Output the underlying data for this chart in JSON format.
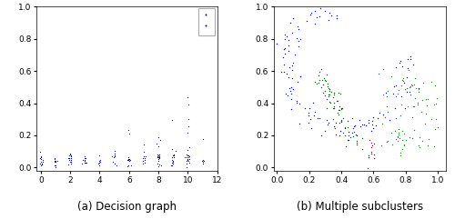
{
  "title_a": "(a) Decision graph",
  "title_b": "(b) Multiple subclusters",
  "xlim_a": [
    -0.3,
    12
  ],
  "ylim_a": [
    -0.02,
    1.0
  ],
  "xlim_b": [
    -0.02,
    1.05
  ],
  "ylim_b": [
    -0.02,
    1.0
  ],
  "dot_color_a": "#00008B",
  "figsize": [
    5.0,
    2.41
  ],
  "dpi": 100,
  "xticks_a": [
    0,
    2,
    4,
    6,
    8,
    10,
    12
  ],
  "yticks_a": [
    0,
    0.2,
    0.4,
    0.6,
    0.8,
    1
  ],
  "xticks_b": [
    0,
    0.2,
    0.4,
    0.6,
    0.8,
    1
  ],
  "yticks_b": [
    0,
    0.2,
    0.4,
    0.6,
    0.8,
    1
  ]
}
